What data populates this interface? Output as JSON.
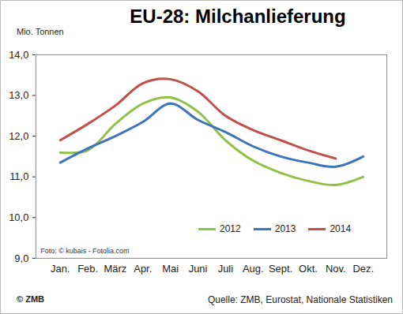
{
  "chart_data": {
    "type": "line",
    "title": "EU-28: Milchanlieferung",
    "y_label": "Mio. Tonnen",
    "categories": [
      "Jan.",
      "Feb.",
      "März",
      "Apr.",
      "Mai",
      "Juni",
      "Juli",
      "Aug.",
      "Sept.",
      "Okt.",
      "Nov.",
      "Dez."
    ],
    "series": [
      {
        "name": "2012",
        "color": "#92c047",
        "values": [
          11.6,
          11.65,
          12.3,
          12.8,
          12.95,
          12.6,
          11.9,
          11.4,
          11.1,
          10.9,
          10.8,
          11.0
        ]
      },
      {
        "name": "2013",
        "color": "#3c74bd",
        "values": [
          11.35,
          11.7,
          12.0,
          12.35,
          12.8,
          12.4,
          12.1,
          11.75,
          11.5,
          11.35,
          11.25,
          11.5
        ]
      },
      {
        "name": "2014",
        "color": "#c0504d",
        "values": [
          11.9,
          12.3,
          12.75,
          13.3,
          13.4,
          13.1,
          12.5,
          12.15,
          11.9,
          11.65,
          11.45,
          null
        ]
      }
    ],
    "ylim": [
      9,
      14
    ],
    "yticks": [
      {
        "value": 9,
        "label": "9,0"
      },
      {
        "value": 10,
        "label": "10,0"
      },
      {
        "value": 11,
        "label": "11,0"
      },
      {
        "value": 12,
        "label": "12,0"
      },
      {
        "value": 13,
        "label": "13,0"
      },
      {
        "value": 14,
        "label": "14,0"
      }
    ],
    "grid": false,
    "legend": "bottom-right",
    "annotations": [
      "Foto: © kubais - Fotolia.com",
      "© ZMB",
      "Quelle: ZMB, Eurostat, Nationale Statistiken"
    ]
  }
}
